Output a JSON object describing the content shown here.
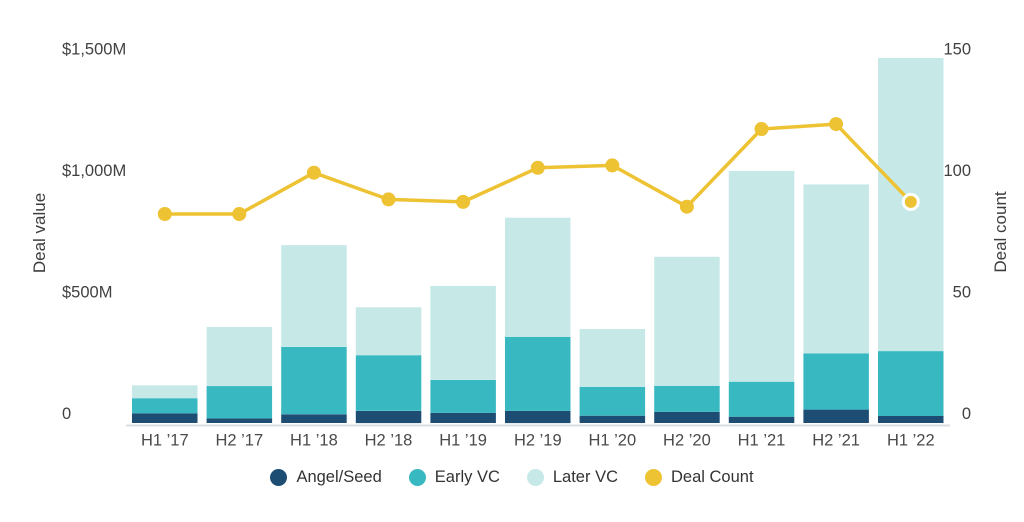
{
  "chart_data": {
    "type": "combo-stacked-bar-line",
    "title": "",
    "grid": false,
    "legend_position": "bottom",
    "categories": [
      "H1 ’17",
      "H2 ’17",
      "H1 ’18",
      "H2 ’18",
      "H1 ’19",
      "H2 ’19",
      "H1 ’20",
      "H2 ’20",
      "H1 ’21",
      "H2 ’21",
      "H1 ’22"
    ],
    "series": [
      {
        "name": "Angel/Seed",
        "type": "bar",
        "stack": true,
        "color": "#1e4d74",
        "axis": "left",
        "values": [
          40,
          19,
          36,
          50,
          42,
          50,
          30,
          46,
          26,
          55,
          29
        ]
      },
      {
        "name": "Early VC",
        "type": "bar",
        "stack": true,
        "color": "#38b8c1",
        "axis": "left",
        "values": [
          62,
          133,
          277,
          229,
          135,
          304,
          119,
          107,
          144,
          231,
          267
        ]
      },
      {
        "name": "Later VC",
        "type": "bar",
        "stack": true,
        "color": "#c6e9e8",
        "axis": "left",
        "values": [
          53,
          243,
          419,
          197,
          387,
          491,
          238,
          531,
          867,
          696,
          1206
        ]
      },
      {
        "name": "Deal Count",
        "type": "line",
        "stack": false,
        "color": "#edc233",
        "axis": "right",
        "values": [
          86,
          86,
          103,
          92,
          91,
          105,
          106,
          89,
          121,
          123,
          91
        ]
      }
    ],
    "left_axis": {
      "label": "Deal value",
      "min": 0,
      "max": 1500,
      "unit": "$M",
      "ticks": [
        {
          "value": 1500,
          "label": "$1,500M"
        },
        {
          "value": 1000,
          "label": "$1,000M"
        },
        {
          "value": 500,
          "label": "$500M"
        },
        {
          "value": 0,
          "label": "0"
        }
      ]
    },
    "right_axis": {
      "label": "Deal count",
      "min": 0,
      "max": 150,
      "ticks": [
        {
          "value": 150,
          "label": "150"
        },
        {
          "value": 100,
          "label": "100"
        },
        {
          "value": 50,
          "label": "50"
        },
        {
          "value": 0,
          "label": "0"
        }
      ]
    },
    "legend": [
      {
        "label": "Angel/Seed",
        "color": "#1e4d74"
      },
      {
        "label": "Early VC",
        "color": "#38b8c1"
      },
      {
        "label": "Later VC",
        "color": "#c6e9e8"
      },
      {
        "label": "Deal Count",
        "color": "#edc233"
      }
    ],
    "colors": {
      "axis_line": "#d9dde1",
      "tick_text": "#414141",
      "background": "#ffffff",
      "last_point_ring": "#ffffff"
    }
  }
}
